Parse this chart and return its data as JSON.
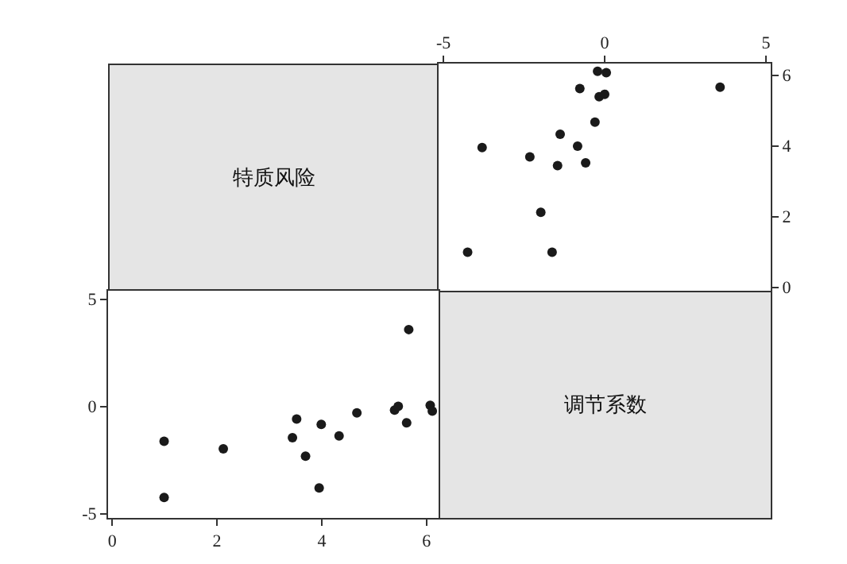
{
  "chart_data": [
    {
      "type": "other",
      "title": "特质风险"
    },
    {
      "type": "scatter",
      "color": "#1a1a1a",
      "marker": "circle",
      "grid": false,
      "xlim": [
        -5.15,
        5.15
      ],
      "ylim": [
        -0.1,
        6.33
      ],
      "xticks": [
        -5,
        0,
        5
      ],
      "yticks": [
        0,
        2,
        4,
        6
      ],
      "x": [
        -1.63,
        -4.25,
        -1.98,
        -1.46,
        -0.59,
        -2.32,
        -3.8,
        -0.84,
        -1.38,
        -0.3,
        -0.17,
        0.0,
        -0.77,
        3.58,
        0.05,
        -0.22
      ],
      "values": [
        0.99,
        0.99,
        2.12,
        3.44,
        3.52,
        3.69,
        3.95,
        3.99,
        4.33,
        4.67,
        5.39,
        5.46,
        5.62,
        5.66,
        6.07,
        6.11
      ]
    },
    {
      "type": "scatter",
      "color": "#1a1a1a",
      "marker": "circle",
      "grid": false,
      "xlim": [
        -0.08,
        6.23
      ],
      "ylim": [
        -5.2,
        5.39
      ],
      "xticks": [
        0,
        2,
        4,
        6
      ],
      "yticks": [
        -5,
        0,
        5
      ],
      "x": [
        0.99,
        0.99,
        2.12,
        3.44,
        3.52,
        3.69,
        3.95,
        3.99,
        4.33,
        4.67,
        5.39,
        5.46,
        5.62,
        5.66,
        6.07,
        6.11
      ],
      "values": [
        -1.63,
        -4.25,
        -1.98,
        -1.46,
        -0.59,
        -2.32,
        -3.8,
        -0.84,
        -1.38,
        -0.3,
        -0.17,
        0.0,
        -0.77,
        3.58,
        0.05,
        -0.22
      ]
    },
    {
      "type": "other",
      "title": "调节系数"
    }
  ]
}
